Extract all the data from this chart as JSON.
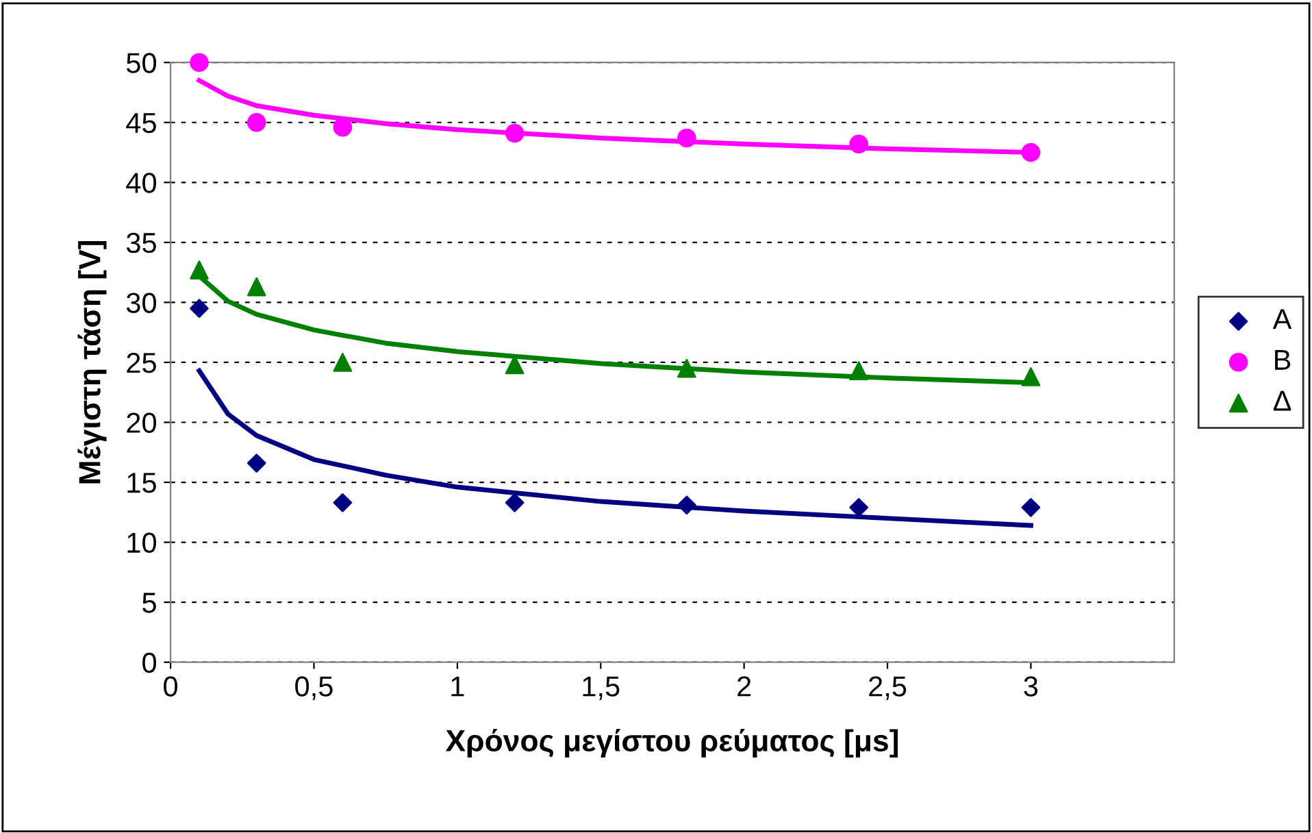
{
  "chart_data": {
    "type": "scatter",
    "xlabel": "Χρόνος μεγίστου ρεύματος [μs]",
    "ylabel": "Μέγιστη τάση [V]",
    "x": [
      0.1,
      0.3,
      0.6,
      1.2,
      1.8,
      2.4,
      3
    ],
    "series": [
      {
        "name": "A",
        "marker": "diamond",
        "color": "#000080",
        "values": [
          29.5,
          16.6,
          13.3,
          13.3,
          13.1,
          12.9,
          12.9
        ]
      },
      {
        "name": "B",
        "marker": "circle",
        "color": "#ff00ff",
        "values": [
          50,
          45,
          44.6,
          44.1,
          43.7,
          43.2,
          42.5
        ]
      },
      {
        "name": "Δ",
        "marker": "triangle",
        "color": "#008000",
        "values": [
          32.7,
          31.3,
          25,
          24.8,
          24.5,
          24.3,
          23.8
        ]
      },
      {
        "type": "line",
        "marker": "none",
        "color": "#000080",
        "x": [
          0.1,
          0.2,
          0.3,
          0.5,
          0.75,
          1,
          1.5,
          2,
          2.5,
          3
        ],
        "values": [
          24.3,
          20.7,
          18.9,
          16.9,
          15.6,
          14.6,
          13.4,
          12.6,
          12.0,
          11.4
        ]
      },
      {
        "type": "line",
        "marker": "none",
        "color": "#ff00ff",
        "x": [
          0.1,
          0.2,
          0.3,
          0.5,
          0.75,
          1,
          1.5,
          2,
          2.5,
          3
        ],
        "values": [
          48.5,
          47.2,
          46.4,
          45.6,
          44.9,
          44.4,
          43.7,
          43.2,
          42.8,
          42.5
        ]
      },
      {
        "type": "line",
        "marker": "none",
        "color": "#008000",
        "x": [
          0.1,
          0.2,
          0.3,
          0.5,
          0.75,
          1,
          1.5,
          2,
          2.5,
          3
        ],
        "values": [
          32.2,
          30.1,
          29.0,
          27.7,
          26.6,
          25.9,
          24.9,
          24.2,
          23.7,
          23.3
        ]
      }
    ],
    "xlim": [
      0,
      3.5
    ],
    "xticks": [
      0,
      {
        "value": 0.5,
        "label": "0,5"
      },
      1,
      {
        "value": 1.5,
        "label": "1,5"
      },
      2,
      {
        "value": 2.5,
        "label": "2,5"
      },
      3
    ],
    "ylim": [
      0,
      50
    ],
    "yticks": [
      0,
      5,
      10,
      15,
      20,
      25,
      30,
      35,
      40,
      45,
      50
    ],
    "grid": "y",
    "legend": "right"
  }
}
